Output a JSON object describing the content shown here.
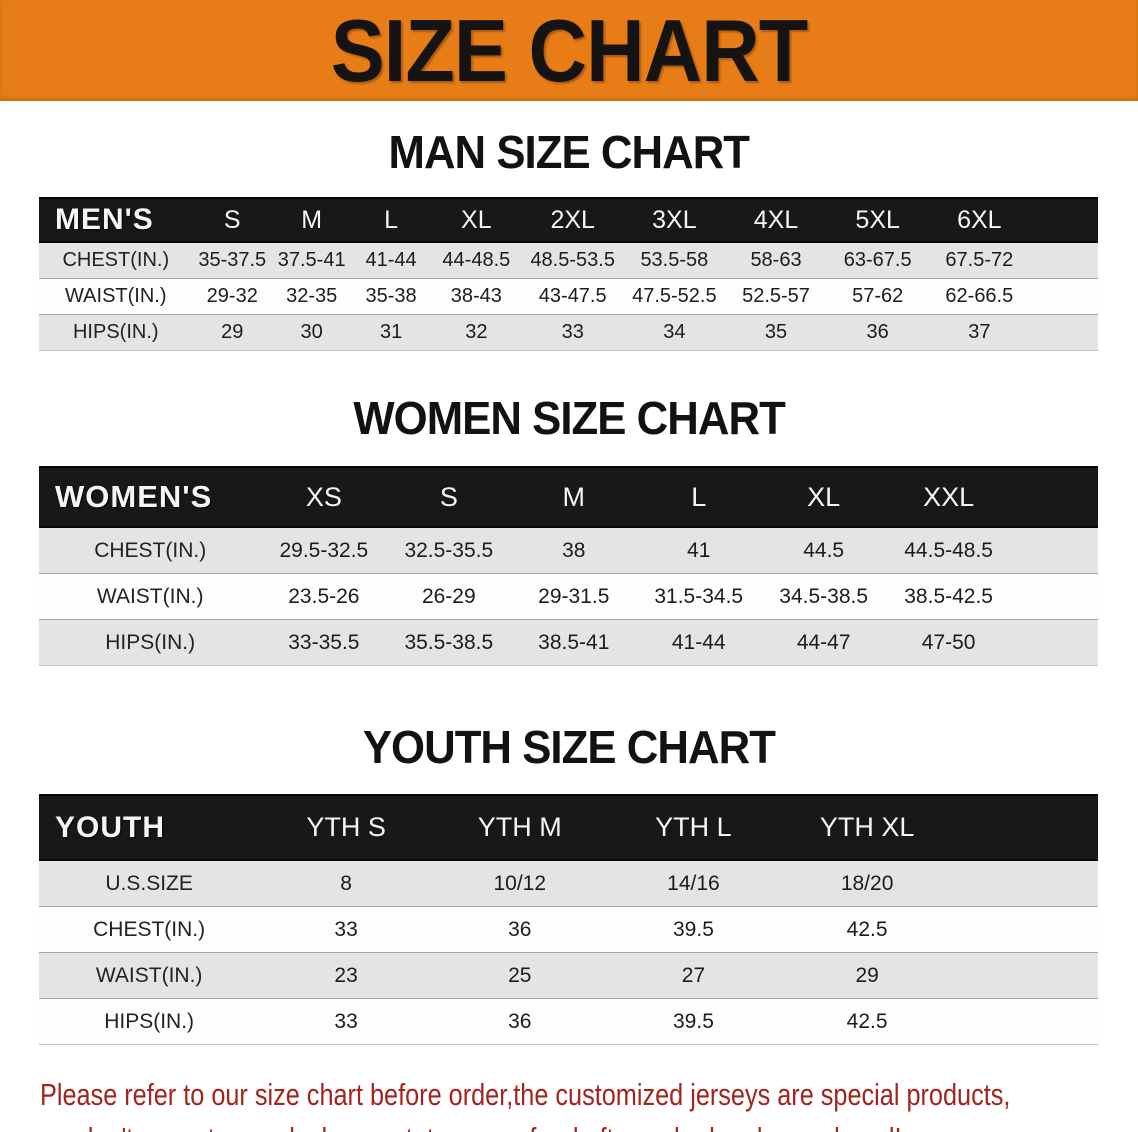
{
  "banner": {
    "title": "SIZE CHART",
    "bg_color": "#e87d17",
    "text_color": "#161412"
  },
  "chart_data": [
    {
      "type": "table",
      "title": "MAN SIZE CHART",
      "header_label": "MEN'S",
      "columns": [
        "S",
        "M",
        "L",
        "XL",
        "2XL",
        "3XL",
        "4XL",
        "5XL",
        "6XL"
      ],
      "rows": [
        {
          "label": "CHEST(IN.)",
          "values": [
            "35-37.5",
            "37.5-41",
            "41-44",
            "44-48.5",
            "48.5-53.5",
            "53.5-58",
            "58-63",
            "63-67.5",
            "67.5-72"
          ]
        },
        {
          "label": "WAIST(IN.)",
          "values": [
            "29-32",
            "32-35",
            "35-38",
            "38-43",
            "43-47.5",
            "47.5-52.5",
            "52.5-57",
            "57-62",
            "62-66.5"
          ]
        },
        {
          "label": "HIPS(IN.)",
          "values": [
            "29",
            "30",
            "31",
            "32",
            "33",
            "34",
            "35",
            "36",
            "37"
          ]
        }
      ]
    },
    {
      "type": "table",
      "title": "WOMEN SIZE CHART",
      "header_label": "WOMEN'S",
      "columns": [
        "XS",
        "S",
        "M",
        "L",
        "XL",
        "XXL"
      ],
      "rows": [
        {
          "label": "CHEST(IN.)",
          "values": [
            "29.5-32.5",
            "32.5-35.5",
            "38",
            "41",
            "44.5",
            "44.5-48.5"
          ]
        },
        {
          "label": "WAIST(IN.)",
          "values": [
            "23.5-26",
            "26-29",
            "29-31.5",
            "31.5-34.5",
            "34.5-38.5",
            "38.5-42.5"
          ]
        },
        {
          "label": "HIPS(IN.)",
          "values": [
            "33-35.5",
            "35.5-38.5",
            "38.5-41",
            "41-44",
            "44-47",
            "47-50"
          ]
        }
      ]
    },
    {
      "type": "table",
      "title": "YOUTH SIZE CHART",
      "header_label": "YOUTH",
      "columns": [
        "YTH S",
        "YTH M",
        "YTH L",
        "YTH XL"
      ],
      "rows": [
        {
          "label": "U.S.SIZE",
          "values": [
            "8",
            "10/12",
            "14/16",
            "18/20"
          ]
        },
        {
          "label": "CHEST(IN.)",
          "values": [
            "33",
            "36",
            "39.5",
            "42.5"
          ]
        },
        {
          "label": "WAIST(IN.)",
          "values": [
            "23",
            "25",
            "27",
            "29"
          ]
        },
        {
          "label": "HIPS(IN.)",
          "values": [
            "33",
            "36",
            "39.5",
            "42.5"
          ]
        }
      ]
    }
  ],
  "disclaimer": {
    "line1": "Please refer to our size chart before order,the customized jerseys are special products,",
    "line2": "we don't accept cancel, change, teturn or refund after order has been placed!",
    "color": "#a3241f"
  }
}
